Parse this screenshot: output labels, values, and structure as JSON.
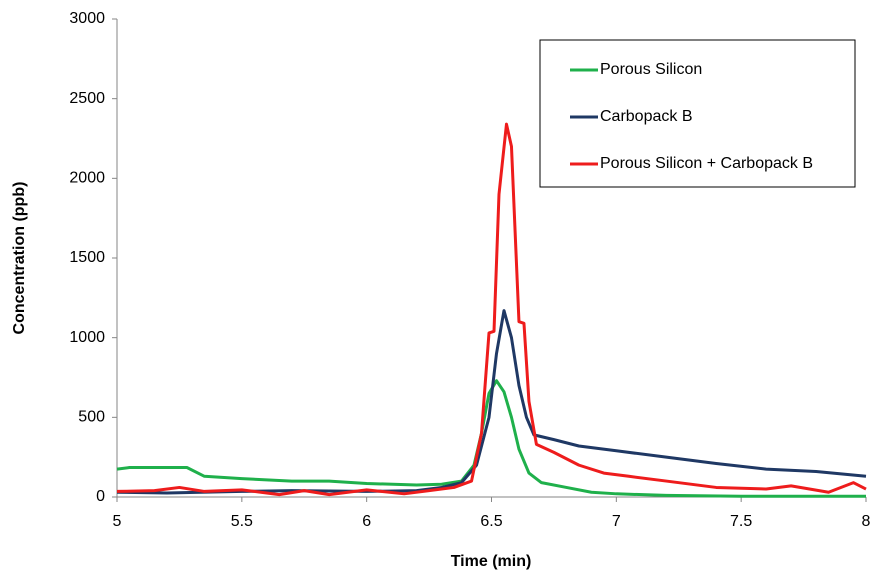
{
  "chart_data": {
    "type": "line",
    "xlabel": "Time (min)",
    "ylabel": "Concentration (ppb)",
    "xlim": [
      5,
      8
    ],
    "xticks": [
      5,
      5.5,
      6,
      6.5,
      7,
      7.5,
      8
    ],
    "ylim": [
      0,
      3000
    ],
    "yticks": [
      0,
      500,
      1000,
      1500,
      2000,
      2500,
      3000
    ],
    "legend": "upper-right",
    "series": [
      {
        "name": "Porous Silicon",
        "color": "#1fb04b",
        "x": [
          5,
          5.05,
          5.15,
          5.28,
          5.35,
          5.5,
          5.7,
          5.85,
          6.0,
          6.2,
          6.3,
          6.38,
          6.43,
          6.46,
          6.49,
          6.52,
          6.55,
          6.58,
          6.61,
          6.65,
          6.7,
          6.8,
          6.9,
          7.0,
          7.2,
          7.5,
          8
        ],
        "values": [
          175,
          185,
          185,
          185,
          130,
          115,
          100,
          100,
          85,
          75,
          80,
          100,
          200,
          400,
          650,
          730,
          660,
          500,
          300,
          150,
          90,
          60,
          30,
          20,
          10,
          5,
          5
        ]
      },
      {
        "name": "Carbopack B",
        "color": "#1f3864",
        "x": [
          5,
          5.2,
          5.5,
          5.7,
          6.0,
          6.2,
          6.3,
          6.38,
          6.44,
          6.49,
          6.52,
          6.55,
          6.58,
          6.61,
          6.64,
          6.67,
          6.75,
          6.85,
          7.0,
          7.2,
          7.4,
          7.6,
          7.8,
          8
        ],
        "values": [
          30,
          25,
          35,
          40,
          35,
          40,
          60,
          90,
          200,
          500,
          900,
          1170,
          1000,
          700,
          500,
          390,
          360,
          320,
          290,
          250,
          210,
          175,
          160,
          130
        ]
      },
      {
        "name": "Porous Silicon + Carbopack B",
        "color": "#ee1c1c",
        "x": [
          5,
          5.15,
          5.25,
          5.35,
          5.5,
          5.65,
          5.75,
          5.85,
          6.0,
          6.15,
          6.25,
          6.35,
          6.42,
          6.46,
          6.49,
          6.51,
          6.53,
          6.56,
          6.58,
          6.61,
          6.63,
          6.65,
          6.68,
          6.75,
          6.85,
          6.95,
          7.05,
          7.2,
          7.4,
          7.6,
          7.7,
          7.85,
          7.95,
          8
        ],
        "values": [
          35,
          40,
          60,
          35,
          45,
          15,
          40,
          15,
          45,
          20,
          40,
          60,
          100,
          400,
          1030,
          1040,
          1900,
          2340,
          2200,
          1100,
          1090,
          600,
          330,
          280,
          200,
          150,
          130,
          100,
          60,
          50,
          70,
          30,
          90,
          50
        ]
      }
    ]
  }
}
